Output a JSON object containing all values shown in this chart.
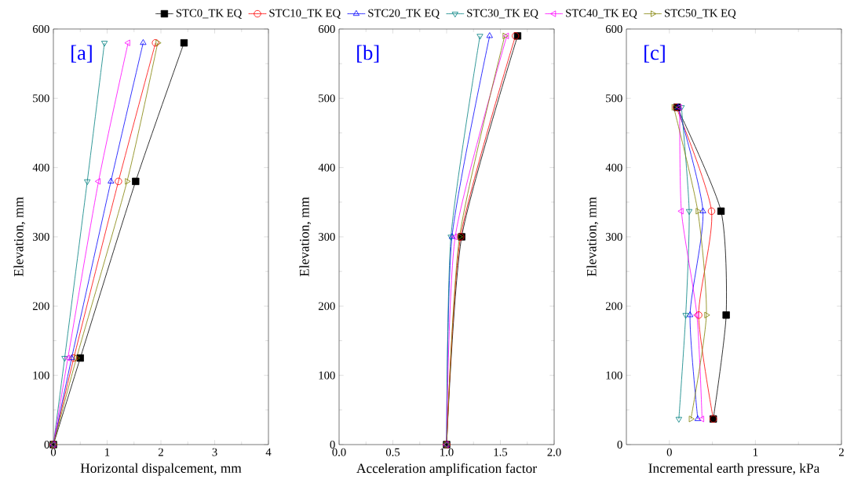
{
  "chart_data": [
    {
      "type": "line",
      "xlabel": "Horizontal dispalcement, mm",
      "ylabel": "Elevation, mm",
      "annotations": [
        "[a]"
      ],
      "xlim": [
        0,
        4
      ],
      "ylim": [
        0,
        600
      ],
      "xticks": [
        0,
        1,
        2,
        3,
        4
      ],
      "yticks": [
        0,
        100,
        200,
        300,
        400,
        500,
        600
      ],
      "series": [
        {
          "color": "#000000",
          "marker": "square",
          "x": [
            0,
            0.5,
            1.53,
            2.43
          ],
          "values": [
            0,
            125,
            380,
            580
          ]
        },
        {
          "color": "#ff0000",
          "marker": "circle",
          "x": [
            0,
            0.38,
            1.21,
            1.9
          ],
          "values": [
            0,
            125,
            380,
            580
          ]
        },
        {
          "color": "#0000ff",
          "marker": "triangle",
          "x": [
            0,
            0.34,
            1.07,
            1.67
          ],
          "values": [
            0,
            125,
            380,
            580
          ]
        },
        {
          "color": "#008080",
          "marker": "triangle-down",
          "x": [
            0,
            0.21,
            0.63,
            0.95
          ],
          "values": [
            0,
            125,
            380,
            580
          ]
        },
        {
          "color": "#ff00ff",
          "marker": "triangle-left",
          "x": [
            0,
            0.27,
            0.84,
            1.39
          ],
          "values": [
            0,
            125,
            380,
            580
          ]
        },
        {
          "color": "#808000",
          "marker": "triangle-right",
          "x": [
            0,
            0.43,
            1.37,
            1.94
          ],
          "values": [
            0,
            125,
            380,
            580
          ]
        }
      ]
    },
    {
      "type": "line",
      "xlabel": "Acceleration amplification factor",
      "ylabel": "Elevation, mm",
      "annotations": [
        "[b]"
      ],
      "legend": "top",
      "xlim": [
        0,
        2
      ],
      "ylim": [
        0,
        600
      ],
      "xticks": [
        {
          "value": 0,
          "label": "0.0"
        },
        {
          "value": 0.5,
          "label": "0.5"
        },
        {
          "value": 1,
          "label": "1.0"
        },
        {
          "value": 1.5,
          "label": "1.5"
        },
        {
          "value": 2,
          "label": "2.0"
        }
      ],
      "yticks": [
        0,
        100,
        200,
        300,
        400,
        500,
        600
      ],
      "series": [
        {
          "name": "STC0_TK EQ",
          "color": "#000000",
          "marker": "square",
          "x": [
            1.0,
            1.14,
            1.66
          ],
          "values": [
            0,
            300,
            590
          ]
        },
        {
          "name": "STC10_TK EQ",
          "color": "#ff0000",
          "marker": "circle",
          "x": [
            1.0,
            1.13,
            1.64
          ],
          "values": [
            0,
            300,
            590
          ]
        },
        {
          "name": "STC20_TK EQ",
          "color": "#0000ff",
          "marker": "triangle",
          "x": [
            1.0,
            1.05,
            1.4
          ],
          "values": [
            0,
            300,
            590
          ]
        },
        {
          "name": "STC30_TK EQ",
          "color": "#008080",
          "marker": "triangle-down",
          "x": [
            1.0,
            1.04,
            1.31
          ],
          "values": [
            0,
            300,
            590
          ]
        },
        {
          "name": "STC40_TK EQ",
          "color": "#ff00ff",
          "marker": "triangle-left",
          "x": [
            1.0,
            1.08,
            1.56
          ],
          "values": [
            0,
            300,
            590
          ]
        },
        {
          "name": "STC50_TK EQ",
          "color": "#808000",
          "marker": "triangle-right",
          "x": [
            1.0,
            1.12,
            1.54
          ],
          "values": [
            0,
            300,
            590
          ]
        }
      ]
    },
    {
      "type": "line",
      "xlabel": "Incremental earth pressure, kPa",
      "ylabel": "Elevation, mm",
      "annotations": [
        "[c]"
      ],
      "xlim": [
        -0.5,
        2
      ],
      "ylim": [
        0,
        600
      ],
      "xticks": [
        0,
        1,
        2
      ],
      "yticks": [
        0,
        100,
        200,
        300,
        400,
        500,
        600
      ],
      "series": [
        {
          "color": "#000000",
          "marker": "square",
          "x": [
            0.51,
            0.66,
            0.6,
            0.09
          ],
          "values": [
            37,
            187,
            337,
            487
          ]
        },
        {
          "color": "#ff0000",
          "marker": "circle",
          "x": [
            0.51,
            0.34,
            0.49,
            0.08
          ],
          "values": [
            37,
            187,
            337,
            487
          ]
        },
        {
          "color": "#0000ff",
          "marker": "triangle",
          "x": [
            0.33,
            0.24,
            0.39,
            0.1
          ],
          "values": [
            37,
            187,
            337,
            487
          ]
        },
        {
          "color": "#008080",
          "marker": "triangle-down",
          "x": [
            0.11,
            0.19,
            0.23,
            0.14
          ],
          "values": [
            37,
            187,
            337,
            487
          ]
        },
        {
          "color": "#ff00ff",
          "marker": "triangle-left",
          "x": [
            0.38,
            0.32,
            0.14,
            0.12
          ],
          "values": [
            37,
            187,
            337,
            487
          ]
        },
        {
          "color": "#808000",
          "marker": "triangle-right",
          "x": [
            0.25,
            0.43,
            0.33,
            0.05
          ],
          "values": [
            37,
            187,
            337,
            487
          ]
        }
      ]
    }
  ]
}
